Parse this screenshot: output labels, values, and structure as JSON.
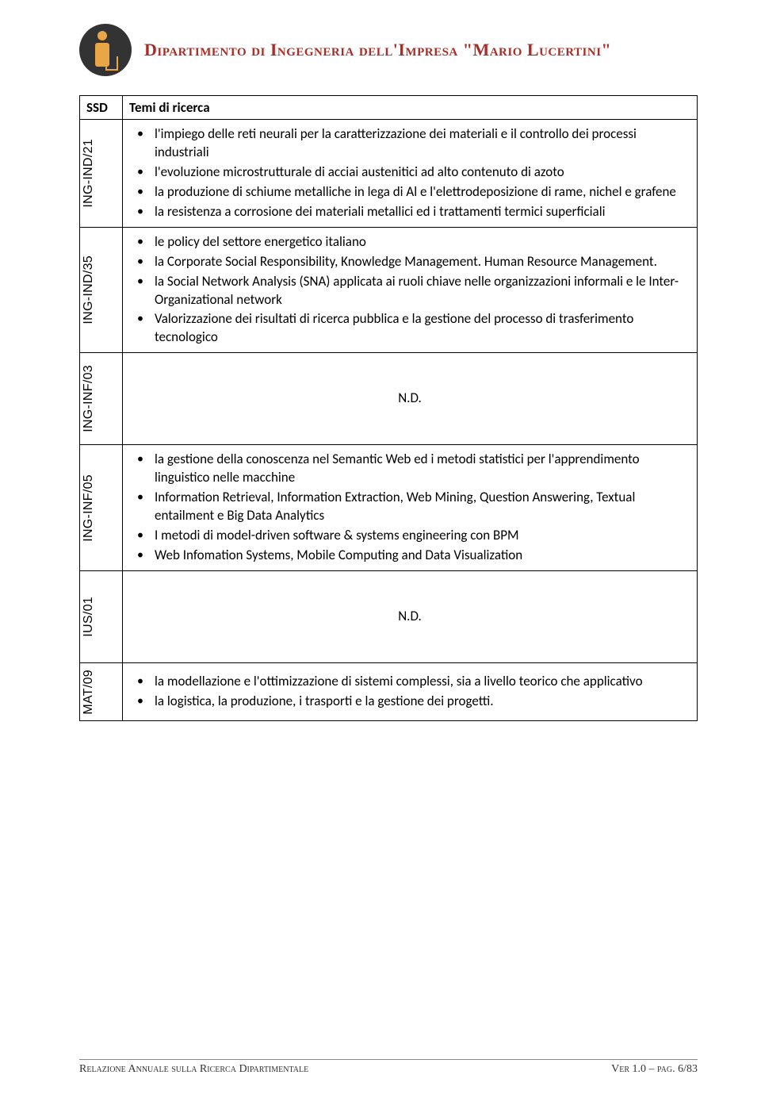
{
  "header": {
    "department_title": "Dipartimento di Ingegneria dell'Impresa \"Mario Lucertini\""
  },
  "table": {
    "col_ssd": "SSD",
    "col_theme": "Temi di ricerca",
    "rows": [
      {
        "ssd": "ING-IND/21",
        "type": "list",
        "items": [
          "l'impiego delle reti neurali per la caratterizzazione dei materiali e il controllo dei processi industriali",
          "l'evoluzione microstrutturale di acciai austenitici ad alto contenuto di azoto",
          "la produzione di schiume metalliche in lega di Al e l'elettrodeposizione di rame, nichel e grafene",
          "la resistenza a corrosione dei materiali metallici ed i trattamenti termici superficiali"
        ]
      },
      {
        "ssd": "ING-IND/35",
        "type": "list",
        "items": [
          "le policy del settore energetico italiano",
          "la Corporate Social Responsibility, Knowledge Management. Human Resource Management.",
          "la Social Network Analysis (SNA) applicata ai ruoli chiave nelle organizzazioni informali e le Inter-Organizational network",
          "Valorizzazione dei risultati di ricerca pubblica e la gestione del processo di trasferimento tecnologico"
        ]
      },
      {
        "ssd": "ING-INF/03",
        "type": "nd",
        "text": "N.D."
      },
      {
        "ssd": "ING-INF/05",
        "type": "list",
        "items": [
          "la gestione della conoscenza nel Semantic Web ed i metodi statistici per l'apprendimento linguistico nelle macchine",
          "Information Retrieval, Information Extraction, Web Mining, Question Answering, Textual entailment e Big Data Analytics",
          "I metodi di model-driven software & systems engineering con BPM",
          "Web Infomation Systems,  Mobile Computing and Data Visualization"
        ]
      },
      {
        "ssd": "IUS/01",
        "type": "nd",
        "text": "N.D."
      },
      {
        "ssd": "MAT/09",
        "type": "list",
        "items": [
          "la modellazione e l'ottimizzazione di sistemi complessi, sia a livello  teorico che applicativo",
          "la logistica, la produzione, i trasporti e la gestione dei progetti."
        ]
      }
    ]
  },
  "footer": {
    "left": "Relazione Annuale sulla Ricerca Dipartimentale",
    "right": "Ver 1.0 – pag. 6/83"
  },
  "colors": {
    "accent": "#a82d26",
    "logo_bg": "#333333",
    "logo_fg": "#e8a646",
    "border": "#000000",
    "text": "#000000"
  }
}
